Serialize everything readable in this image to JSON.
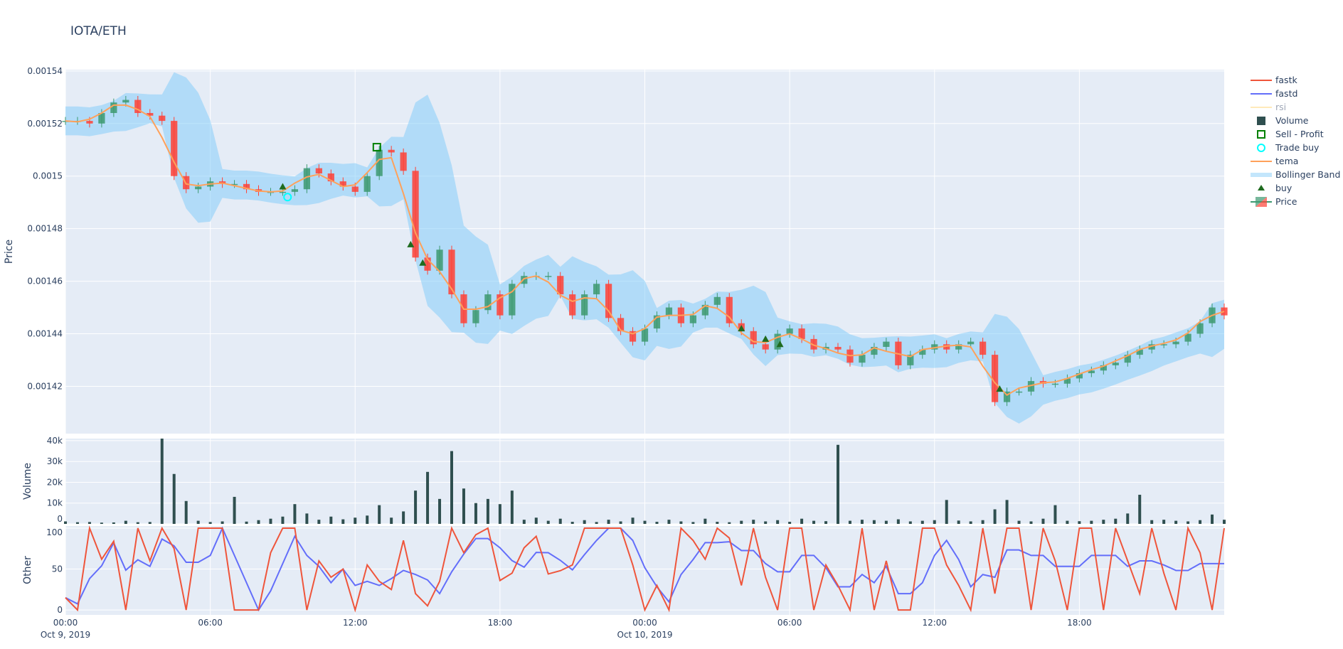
{
  "title": "IOTA/ETH",
  "colors": {
    "increasing": "#3D9970",
    "decreasing": "#FF4136",
    "tema": "#FFA15A",
    "fastk": "#EF553B",
    "fastd": "#636EFA",
    "rsi": "#FECB52",
    "volume": "#2F4F4F",
    "bollinger": "#87CEFA",
    "buy": "#1F6B1F",
    "sell_profit": "#008000",
    "trade_buy": "#00FFFF",
    "plot_bg": "#E5ECF6",
    "grid": "#FFFFFF"
  },
  "legend": [
    "fastk",
    "fastd",
    "rsi",
    "Volume",
    "Sell - Profit",
    "Trade buy",
    "tema",
    "Bollinger Band",
    "buy",
    "Price"
  ],
  "chart_data": {
    "type": "candlestick",
    "x_axis": {
      "range_hours_from_start": [
        0,
        48
      ],
      "start": "Oct 9, 2019 00:00",
      "step_hours": 0.5,
      "tick_labels": [
        "00:00",
        "06:00",
        "12:00",
        "18:00",
        "00:00",
        "06:00",
        "12:00",
        "18:00"
      ],
      "tick_hours": [
        0,
        6,
        12,
        18,
        24,
        30,
        36,
        42
      ],
      "date_labels": [
        {
          "hour": 0,
          "label": "Oct 9, 2019"
        },
        {
          "hour": 24,
          "label": "Oct 10, 2019"
        }
      ]
    },
    "price": {
      "ylabel": "Price",
      "ylim": [
        0.001402,
        0.0015405
      ],
      "tick_labels": [
        "0.00154",
        "0.00152",
        "0.0015",
        "0.00148",
        "0.00146",
        "0.00144",
        "0.00142"
      ],
      "tick_values": [
        0.00154,
        0.00152,
        0.0015,
        0.00148,
        0.00146,
        0.00144,
        0.00142
      ],
      "close": [
        0.001521,
        0.001521,
        0.00152,
        0.001524,
        0.001528,
        0.001529,
        0.001524,
        0.001523,
        0.001521,
        0.0015,
        0.001495,
        0.001496,
        0.001498,
        0.001497,
        0.001497,
        0.001495,
        0.001494,
        0.001494,
        0.001494,
        0.001495,
        0.001503,
        0.001501,
        0.001498,
        0.001496,
        0.001494,
        0.0015,
        0.00151,
        0.001509,
        0.001502,
        0.001469,
        0.001464,
        0.001472,
        0.001455,
        0.001444,
        0.001449,
        0.001455,
        0.001447,
        0.001459,
        0.001462,
        0.001462,
        0.001462,
        0.001455,
        0.001447,
        0.001455,
        0.001459,
        0.001446,
        0.001441,
        0.001437,
        0.001442,
        0.001447,
        0.00145,
        0.001444,
        0.001447,
        0.001451,
        0.001454,
        0.001444,
        0.001441,
        0.001436,
        0.001434,
        0.00144,
        0.001442,
        0.001438,
        0.001434,
        0.001435,
        0.001434,
        0.001429,
        0.001432,
        0.001435,
        0.001437,
        0.001428,
        0.001432,
        0.001434,
        0.001436,
        0.001434,
        0.001436,
        0.001437,
        0.001432,
        0.001414,
        0.001418,
        0.001418,
        0.001422,
        0.001421,
        0.001421,
        0.001423,
        0.001425,
        0.001426,
        0.001428,
        0.001429,
        0.001432,
        0.001434,
        0.001436,
        0.001436,
        0.001437,
        0.00144,
        0.001444,
        0.00145,
        0.001447
      ],
      "buy": [
        {
          "hour": 9.0,
          "price": 0.001496
        },
        {
          "hour": 14.3,
          "price": 0.001474
        },
        {
          "hour": 14.8,
          "price": 0.001467
        },
        {
          "hour": 28.0,
          "price": 0.001442
        },
        {
          "hour": 29.0,
          "price": 0.001438
        },
        {
          "hour": 29.6,
          "price": 0.001436
        },
        {
          "hour": 38.7,
          "price": 0.001419
        }
      ],
      "trade_buy": [
        {
          "hour": 9.2,
          "price": 0.001492
        }
      ],
      "sell_profit": [
        {
          "hour": 12.9,
          "price": 0.001511
        }
      ]
    },
    "volume": {
      "ylabel": "Volume",
      "ylim": [
        0,
        41000
      ],
      "tick_labels": [
        "0",
        "10k",
        "20k",
        "30k",
        "40k"
      ],
      "tick_values": [
        0,
        10000,
        20000,
        30000,
        40000
      ],
      "values": [
        1200,
        800,
        900,
        600,
        700,
        1500,
        800,
        900,
        41000,
        24000,
        11000,
        1500,
        900,
        1200,
        13000,
        1100,
        1800,
        2500,
        3500,
        9500,
        5000,
        2000,
        3500,
        2200,
        3000,
        4000,
        9000,
        3000,
        6000,
        16000,
        25000,
        12000,
        35000,
        17000,
        10000,
        12000,
        9500,
        16000,
        2000,
        3000,
        1500,
        2500,
        1000,
        1800,
        900,
        2000,
        1200,
        3000,
        1500,
        1000,
        2000,
        1200,
        900,
        2500,
        1000,
        800,
        1500,
        2000,
        1200,
        1800,
        1000,
        2500,
        1500,
        1300,
        38000,
        1500,
        2000,
        1800,
        1500,
        2200,
        1200,
        1500,
        1800,
        11500,
        1600,
        1200,
        1800,
        7000,
        11500,
        1500,
        1200,
        2500,
        9000,
        1500,
        1300,
        1500,
        2000,
        2500,
        5000,
        14000,
        1800,
        2000,
        1500,
        1200,
        1800,
        4500,
        2000
      ]
    },
    "other": {
      "ylabel": "Other",
      "ylim": [
        -6,
        102.6
      ],
      "tick_labels": [
        "0",
        "50",
        "100"
      ],
      "tick_values": [
        0,
        50,
        100
      ],
      "fastk": [
        15,
        0,
        100,
        62,
        84,
        0,
        100,
        60,
        100,
        75,
        0,
        100,
        100,
        100,
        0,
        0,
        0,
        70,
        100,
        100,
        0,
        60,
        40,
        50,
        0,
        55,
        35,
        25,
        85,
        20,
        5,
        35,
        100,
        70,
        92,
        100,
        36,
        45,
        76,
        90,
        44,
        48,
        55,
        100,
        100,
        100,
        100,
        55,
        0,
        30,
        0,
        100,
        85,
        62,
        100,
        88,
        30,
        100,
        40,
        0,
        100,
        100,
        0,
        55,
        30,
        0,
        100,
        0,
        60,
        0,
        0,
        100,
        100,
        55,
        30,
        0,
        100,
        20,
        100,
        100,
        0,
        100,
        60,
        0,
        100,
        100,
        0,
        100,
        60,
        20,
        100,
        45,
        0,
        100,
        70,
        0,
        100
      ]
    }
  }
}
